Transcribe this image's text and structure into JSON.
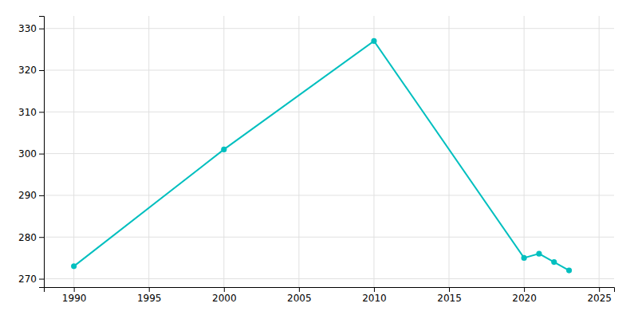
{
  "chart_data": {
    "type": "line",
    "x": [
      1990,
      2000,
      2010,
      2020,
      2021,
      2022,
      2023
    ],
    "values": [
      273,
      301,
      327,
      275,
      276,
      274,
      272
    ],
    "color": "#00BFBF",
    "marker": "circle",
    "xlim": [
      1988,
      2026
    ],
    "ylim": [
      268,
      333
    ],
    "xticks": [
      1990,
      1995,
      2000,
      2005,
      2010,
      2015,
      2020,
      2025
    ],
    "yticks": [
      270,
      280,
      290,
      300,
      310,
      320,
      330
    ],
    "grid": true
  }
}
